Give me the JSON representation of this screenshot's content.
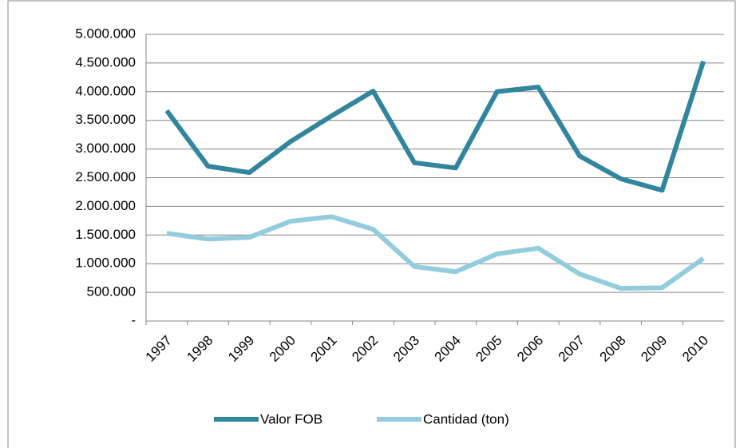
{
  "chart_data": {
    "type": "line",
    "categories": [
      "1997",
      "1998",
      "1999",
      "2000",
      "2001",
      "2002",
      "2003",
      "2004",
      "2005",
      "2006",
      "2007",
      "2008",
      "2009",
      "2010"
    ],
    "series": [
      {
        "name": "Valor FOB",
        "color": "#31859c",
        "values": [
          3670000,
          2700000,
          2590000,
          3130000,
          3580000,
          4010000,
          2760000,
          2670000,
          4000000,
          4080000,
          2880000,
          2480000,
          2280000,
          4530000
        ]
      },
      {
        "name": "Cantidad (ton)",
        "color": "#93cddd",
        "values": [
          1530000,
          1430000,
          1460000,
          1740000,
          1820000,
          1600000,
          950000,
          860000,
          1170000,
          1270000,
          820000,
          570000,
          580000,
          1090000
        ]
      }
    ],
    "ylim": [
      0,
      5000000
    ],
    "yticks": [
      {
        "value": 0,
        "label": "-"
      },
      {
        "value": 500000,
        "label": "500.000"
      },
      {
        "value": 1000000,
        "label": "1.000.000"
      },
      {
        "value": 1500000,
        "label": "1.500.000"
      },
      {
        "value": 2000000,
        "label": "2.000.000"
      },
      {
        "value": 2500000,
        "label": "2.500.000"
      },
      {
        "value": 3000000,
        "label": "3.000.000"
      },
      {
        "value": 3500000,
        "label": "3.500.000"
      },
      {
        "value": 4000000,
        "label": "4.000.000"
      },
      {
        "value": 4500000,
        "label": "4.500.000"
      },
      {
        "value": 5000000,
        "label": "5.000.000"
      }
    ],
    "grid": true,
    "legend": "bottom"
  }
}
